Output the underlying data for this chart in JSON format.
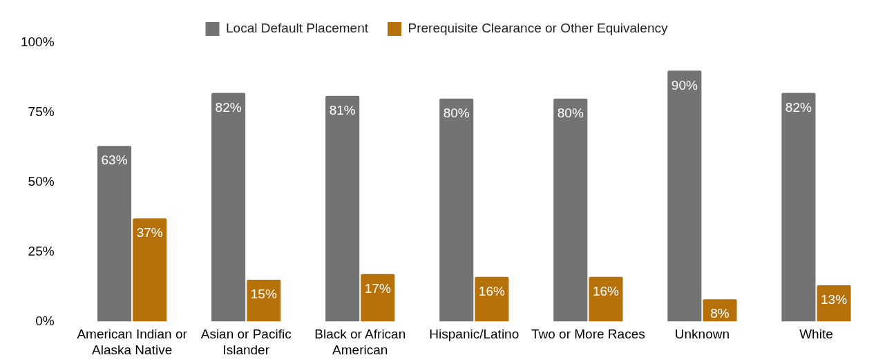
{
  "chart_data": {
    "type": "bar",
    "categories": [
      "American Indian or Alaska Native",
      "Asian or Pacific Islander",
      "Black or African American",
      "Hispanic/Latino",
      "Two or More Races",
      "Unknown",
      "White"
    ],
    "series": [
      {
        "name": "Local Default Placement",
        "color": "#737373",
        "values": [
          63,
          82,
          81,
          80,
          80,
          90,
          82
        ],
        "value_labels": [
          "63%",
          "82%",
          "81%",
          "80%",
          "80%",
          "90%",
          "82%"
        ]
      },
      {
        "name": "Prerequisite Clearance or Other Equivalency",
        "color": "#b7710b",
        "values": [
          37,
          15,
          17,
          16,
          16,
          8,
          13
        ],
        "value_labels": [
          "37%",
          "15%",
          "17%",
          "16%",
          "16%",
          "8%",
          "13%"
        ]
      }
    ],
    "ylim": [
      0,
      100
    ],
    "yticks": [
      {
        "value": 0,
        "label": "0%"
      },
      {
        "value": 25,
        "label": "25%"
      },
      {
        "value": 50,
        "label": "50%"
      },
      {
        "value": 75,
        "label": "75%"
      },
      {
        "value": 100,
        "label": "100%"
      }
    ],
    "grid": false,
    "legend": "top"
  }
}
